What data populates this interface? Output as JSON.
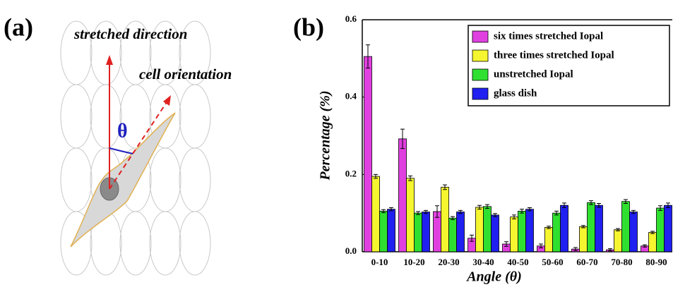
{
  "panel_a": {
    "label": "(a)",
    "stretched_direction": "stretched direction",
    "cell_orientation": "cell orientation",
    "angle_symbol": "θ"
  },
  "chart_data": {
    "type": "bar",
    "panel_label": "(b)",
    "x_label": "Angle (θ)",
    "y_label": "Percentage (%)",
    "categories": [
      "0-10",
      "10-20",
      "20-30",
      "30-40",
      "40-50",
      "50-60",
      "60-70",
      "70-80",
      "80-90"
    ],
    "series": [
      {
        "name": "six times stretched Iopal",
        "color": "#e040e0",
        "values": [
          0.505,
          0.292,
          0.104,
          0.035,
          0.02,
          0.015,
          0.007,
          0.005,
          0.015
        ],
        "errors": [
          0.03,
          0.025,
          0.015,
          0.008,
          0.006,
          0.005,
          0.004,
          0.003,
          0.003
        ]
      },
      {
        "name": "three times stretched Iopal",
        "color": "#f5f530",
        "values": [
          0.195,
          0.19,
          0.167,
          0.115,
          0.09,
          0.063,
          0.065,
          0.057,
          0.05
        ],
        "errors": [
          0.005,
          0.006,
          0.006,
          0.005,
          0.005,
          0.003,
          0.003,
          0.003,
          0.003
        ]
      },
      {
        "name": "unstretched Iopal",
        "color": "#30e030",
        "values": [
          0.105,
          0.1,
          0.087,
          0.117,
          0.105,
          0.1,
          0.127,
          0.13,
          0.113
        ],
        "errors": [
          0.004,
          0.004,
          0.004,
          0.005,
          0.005,
          0.005,
          0.005,
          0.005,
          0.006
        ]
      },
      {
        "name": "glass dish",
        "color": "#2020f0",
        "values": [
          0.11,
          0.103,
          0.103,
          0.095,
          0.11,
          0.12,
          0.12,
          0.103,
          0.12
        ],
        "errors": [
          0.004,
          0.004,
          0.004,
          0.004,
          0.004,
          0.006,
          0.005,
          0.004,
          0.006
        ]
      }
    ],
    "ylim": [
      0,
      0.6
    ],
    "yticks": [
      {
        "value": 0,
        "label": "0.0"
      },
      0.2,
      0.4,
      0.6
    ],
    "legend": "upper right"
  }
}
